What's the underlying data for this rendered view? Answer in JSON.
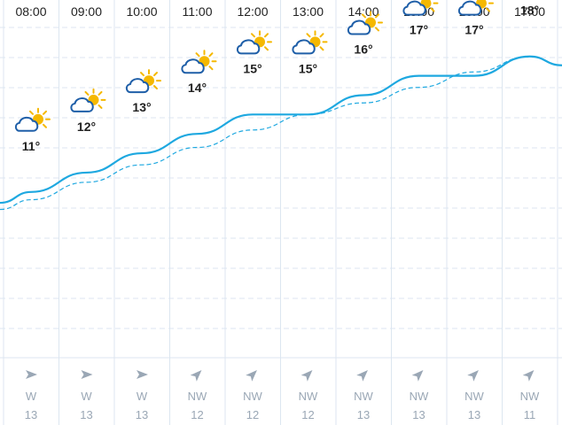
{
  "forecast": {
    "hours": [
      {
        "time": "08:00",
        "temp": "11°",
        "icon": "partly-cloudy-icon",
        "wind_dir": "W",
        "wind_speed": "13",
        "wind_arrow": "W"
      },
      {
        "time": "09:00",
        "temp": "12°",
        "icon": "partly-cloudy-icon",
        "wind_dir": "W",
        "wind_speed": "13",
        "wind_arrow": "W"
      },
      {
        "time": "10:00",
        "temp": "13°",
        "icon": "partly-cloudy-icon",
        "wind_dir": "W",
        "wind_speed": "13",
        "wind_arrow": "W"
      },
      {
        "time": "11:00",
        "temp": "14°",
        "icon": "partly-cloudy-icon",
        "wind_dir": "NW",
        "wind_speed": "12",
        "wind_arrow": "NW"
      },
      {
        "time": "12:00",
        "temp": "15°",
        "icon": "partly-cloudy-icon",
        "wind_dir": "NW",
        "wind_speed": "12",
        "wind_arrow": "NW"
      },
      {
        "time": "13:00",
        "temp": "15°",
        "icon": "partly-cloudy-icon",
        "wind_dir": "NW",
        "wind_speed": "12",
        "wind_arrow": "NW"
      },
      {
        "time": "14:00",
        "temp": "16°",
        "icon": "partly-cloudy-icon",
        "wind_dir": "NW",
        "wind_speed": "13",
        "wind_arrow": "NW"
      },
      {
        "time": "15:00",
        "temp": "17°",
        "icon": "partly-cloudy-icon",
        "wind_dir": "NW",
        "wind_speed": "13",
        "wind_arrow": "NW"
      },
      {
        "time": "16:00",
        "temp": "17°",
        "icon": "partly-cloudy-icon",
        "wind_dir": "NW",
        "wind_speed": "13",
        "wind_arrow": "NW"
      },
      {
        "time": "17:00",
        "temp": "18°",
        "icon": "partly-cloudy-icon",
        "wind_dir": "NW",
        "wind_speed": "11",
        "wind_arrow": "NW"
      }
    ],
    "colors": {
      "line": "#1ea8e0",
      "cloud": "#1f5fa8",
      "sun": "#f5b800",
      "grid": "#dce6f0",
      "arrow": "#9aa7b5"
    }
  },
  "chart_data": {
    "type": "line",
    "x": [
      "08:00",
      "09:00",
      "10:00",
      "11:00",
      "12:00",
      "13:00",
      "14:00",
      "15:00",
      "16:00",
      "17:00"
    ],
    "series": [
      {
        "values": [
          11,
          12,
          13,
          14,
          15,
          15,
          16,
          17,
          17,
          18
        ],
        "style": "solid"
      },
      {
        "values": [
          10.6,
          11.5,
          12.4,
          13.3,
          14.2,
          15.0,
          15.6,
          16.4,
          17.2,
          18.0
        ],
        "style": "dashed"
      }
    ],
    "ylim": [
      5,
      20
    ],
    "grid": true
  }
}
